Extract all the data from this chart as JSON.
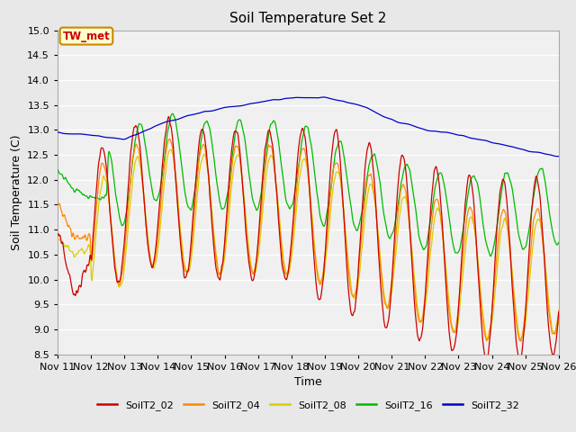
{
  "title": "Soil Temperature Set 2",
  "xlabel": "Time",
  "ylabel": "Soil Temperature (C)",
  "ylim": [
    8.5,
    15.0
  ],
  "yticks": [
    8.5,
    9.0,
    9.5,
    10.0,
    10.5,
    11.0,
    11.5,
    12.0,
    12.5,
    13.0,
    13.5,
    14.0,
    14.5,
    15.0
  ],
  "colors": {
    "SoilT2_02": "#cc0000",
    "SoilT2_04": "#ff8800",
    "SoilT2_08": "#ddcc00",
    "SoilT2_16": "#00bb00",
    "SoilT2_32": "#0000cc"
  },
  "annotation_text": "TW_met",
  "annotation_box_color": "#ffffcc",
  "annotation_box_edge": "#cc8800",
  "annotation_text_color": "#cc0000",
  "background_color": "#e8e8e8",
  "plot_bg_color": "#f0f0f0",
  "grid_color": "#ffffff"
}
